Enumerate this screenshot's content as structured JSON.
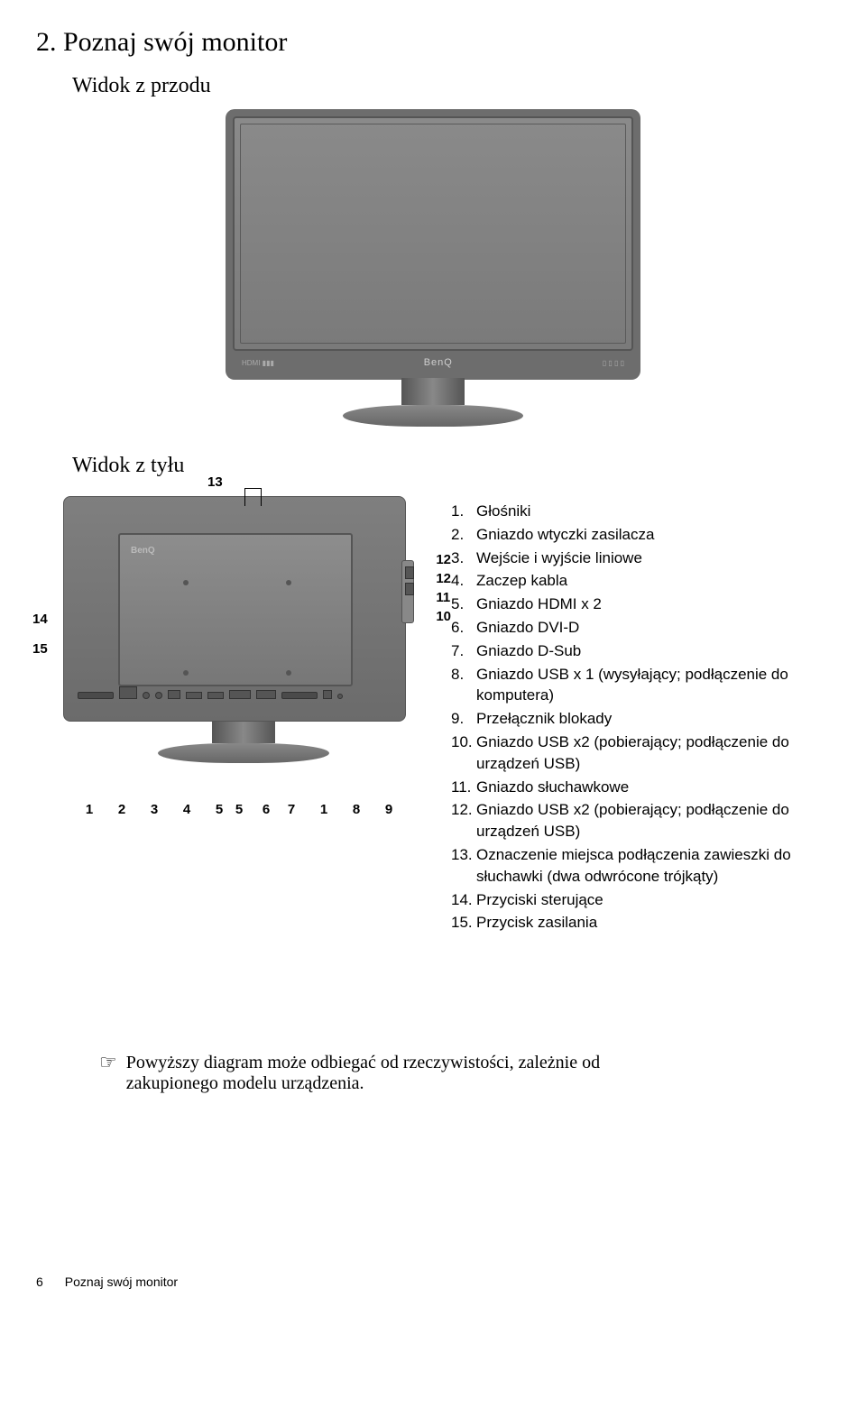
{
  "title": "2. Poznaj swój monitor",
  "front_subtitle": "Widok z przodu",
  "back_subtitle": "Widok z tyłu",
  "monitor_brand": "BenQ",
  "back_diagram": {
    "top_callout": "13",
    "right_callouts": [
      "12",
      "12",
      "11",
      "10"
    ],
    "left_callouts": [
      "14",
      "15"
    ],
    "bottom_callouts": [
      "1",
      "2",
      "3",
      "4",
      "5",
      "5",
      "6",
      "7",
      "1",
      "8",
      "9"
    ]
  },
  "legend": [
    {
      "n": "1.",
      "t": "Głośniki"
    },
    {
      "n": "2.",
      "t": "Gniazdo wtyczki zasilacza"
    },
    {
      "n": "3.",
      "t": "Wejście i wyjście liniowe"
    },
    {
      "n": "4.",
      "t": "Zaczep kabla"
    },
    {
      "n": "5.",
      "t": "Gniazdo HDMI x 2"
    },
    {
      "n": "6.",
      "t": "Gniazdo DVI-D"
    },
    {
      "n": "7.",
      "t": "Gniazdo D-Sub"
    },
    {
      "n": "8.",
      "t": "Gniazdo USB x 1 (wysyłający; podłączenie do komputera)"
    },
    {
      "n": "9.",
      "t": "Przełącznik blokady"
    },
    {
      "n": "10.",
      "t": "Gniazdo USB x2 (pobierający; podłączenie do urządzeń USB)"
    },
    {
      "n": "11.",
      "t": "Gniazdo słuchawkowe"
    },
    {
      "n": "12.",
      "t": "Gniazdo USB x2 (pobierający; podłączenie do urządzeń USB)"
    },
    {
      "n": "13.",
      "t": "Oznaczenie miejsca podłączenia zawieszki do słuchawki (dwa odwrócone trójkąty)"
    },
    {
      "n": "14.",
      "t": "Przyciski sterujące"
    },
    {
      "n": "15.",
      "t": "Przycisk zasilania"
    }
  ],
  "note_icon": "☞",
  "note_text": "Powyższy diagram może odbiegać od rzeczywistości, zależnie od zakupionego modelu urządzenia.",
  "footer_page": "6",
  "footer_text": "Poznaj swój monitor"
}
